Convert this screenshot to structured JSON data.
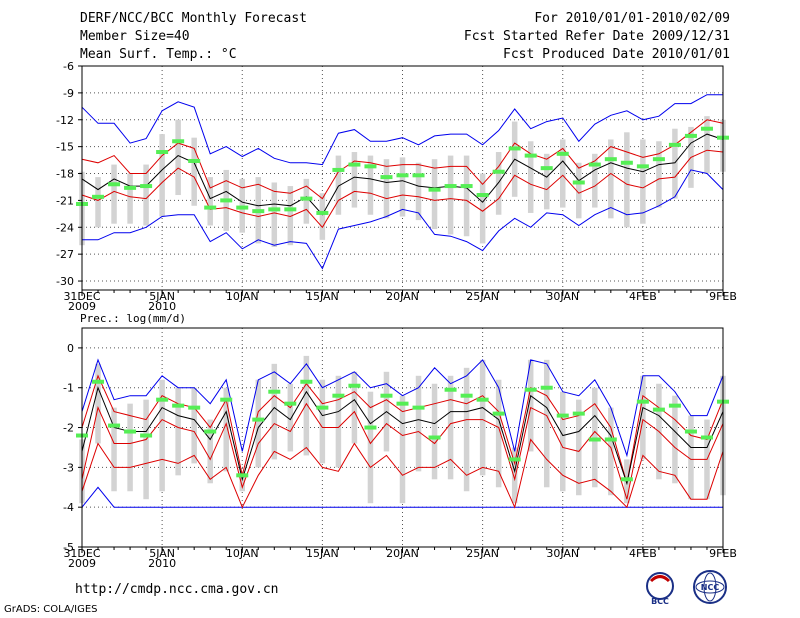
{
  "header": {
    "left": [
      "DERF/NCC/BCC Monthly Forecast",
      "Member Size=40",
      "Mean Surf. Temp.: °C"
    ],
    "right": [
      "For 2010/01/01-2010/02/09",
      "Fcst Started Refer Date 2009/12/31",
      "Fcst Produced Date 2010/01/01"
    ]
  },
  "colors": {
    "max_min": "#0000ee",
    "spread": "#dd0000",
    "mean": "#000000",
    "box": "#d3d3d3",
    "obs": "#55ee55"
  },
  "footer": {
    "url": "http://cmdp.ncc.cma.gov.cn",
    "grads": "GrADS: COLA/IGES",
    "logo_left": "BCC",
    "logo_right": "NCC"
  },
  "chart_data": [
    {
      "type": "line",
      "title": "Mean Surf. Temp.: °C",
      "ylim": [
        -31,
        -6
      ],
      "yticks": [
        "-6",
        "-9",
        "-12",
        "-15",
        "-18",
        "-21",
        "-24",
        "-27",
        "-30"
      ],
      "xlim": [
        0,
        40
      ],
      "xticks": [
        {
          "x": 0,
          "label": "31DEC",
          "sub": "2009"
        },
        {
          "x": 5,
          "label": "5JAN",
          "sub": "2010"
        },
        {
          "x": 10,
          "label": "10JAN",
          "sub": ""
        },
        {
          "x": 15,
          "label": "15JAN",
          "sub": ""
        },
        {
          "x": 20,
          "label": "20JAN",
          "sub": ""
        },
        {
          "x": 25,
          "label": "25JAN",
          "sub": ""
        },
        {
          "x": 30,
          "label": "30JAN",
          "sub": ""
        },
        {
          "x": 35,
          "label": "4FEB",
          "sub": ""
        },
        {
          "x": 40,
          "label": "9FEB",
          "sub": ""
        }
      ],
      "series": [
        {
          "name": "max",
          "values": [
            -10.6,
            -12.4,
            -12.4,
            -14.6,
            -14.1,
            -11.0,
            -10.0,
            -10.6,
            -15.8,
            -15.0,
            -16.1,
            -15.2,
            -16.3,
            -16.8,
            -16.8,
            -17.0,
            -13.5,
            -13.1,
            -14.4,
            -14.4,
            -14.0,
            -14.8,
            -13.8,
            -13.6,
            -13.6,
            -14.8,
            -13.2,
            -10.8,
            -13.0,
            -12.2,
            -11.8,
            -14.4,
            -12.5,
            -11.5,
            -11.0,
            -12.0,
            -11.6,
            -10.2,
            -10.2,
            -9.2,
            -9.2
          ]
        },
        {
          "name": "upper",
          "values": [
            -16.4,
            -16.8,
            -16.0,
            -18.0,
            -18.0,
            -16.0,
            -14.6,
            -15.2,
            -19.6,
            -18.8,
            -19.6,
            -19.2,
            -20.0,
            -20.2,
            -19.4,
            -20.8,
            -17.8,
            -16.6,
            -16.8,
            -17.2,
            -17.0,
            -17.0,
            -17.4,
            -17.2,
            -17.2,
            -19.2,
            -17.2,
            -14.6,
            -15.8,
            -16.4,
            -15.2,
            -17.4,
            -16.6,
            -15.0,
            -15.6,
            -16.2,
            -15.8,
            -14.8,
            -13.4,
            -12.0,
            -12.4
          ]
        },
        {
          "name": "mean",
          "values": [
            -18.6,
            -19.8,
            -18.6,
            -19.4,
            -19.4,
            -17.6,
            -16.0,
            -16.8,
            -20.8,
            -20.0,
            -21.2,
            -21.6,
            -21.4,
            -21.6,
            -20.6,
            -22.6,
            -19.4,
            -18.4,
            -18.6,
            -19.0,
            -18.8,
            -19.4,
            -19.6,
            -19.4,
            -19.6,
            -21.2,
            -19.0,
            -16.4,
            -17.4,
            -18.4,
            -16.6,
            -18.8,
            -17.6,
            -16.8,
            -17.4,
            -17.8,
            -17.0,
            -16.8,
            -14.6,
            -13.6,
            -14.2
          ]
        },
        {
          "name": "lower",
          "values": [
            -20.4,
            -21.0,
            -20.0,
            -20.6,
            -20.8,
            -19.0,
            -17.4,
            -18.4,
            -22.0,
            -21.8,
            -22.4,
            -22.8,
            -22.4,
            -22.8,
            -22.0,
            -24.0,
            -21.0,
            -20.0,
            -20.2,
            -20.8,
            -20.4,
            -20.6,
            -21.0,
            -20.8,
            -21.0,
            -22.2,
            -20.8,
            -18.2,
            -19.2,
            -19.8,
            -18.2,
            -20.2,
            -19.4,
            -18.0,
            -19.2,
            -19.6,
            -18.6,
            -18.4,
            -16.2,
            -15.4,
            -15.6
          ]
        },
        {
          "name": "min",
          "values": [
            -25.4,
            -25.4,
            -24.6,
            -24.6,
            -24.0,
            -22.8,
            -22.6,
            -22.6,
            -25.6,
            -24.6,
            -26.4,
            -25.4,
            -26.0,
            -25.6,
            -25.8,
            -28.6,
            -24.2,
            -23.8,
            -23.4,
            -22.8,
            -22.0,
            -22.4,
            -24.8,
            -25.0,
            -25.6,
            -26.6,
            -24.4,
            -23.0,
            -24.0,
            -22.4,
            -22.6,
            -23.8,
            -22.6,
            -21.8,
            -22.6,
            -22.4,
            -21.6,
            -20.6,
            -17.6,
            -18.0,
            -19.8
          ]
        },
        {
          "name": "box_top",
          "values": [
            -17.8,
            -18.4,
            -17.0,
            -18.0,
            -17.0,
            -13.6,
            -12.0,
            -14.0,
            -18.4,
            -17.6,
            -18.6,
            -18.4,
            -19.0,
            -19.4,
            -18.6,
            -20.2,
            -16.0,
            -15.6,
            -16.0,
            -16.4,
            -16.2,
            -16.8,
            -16.4,
            -16.0,
            -16.0,
            -18.0,
            -15.6,
            -12.2,
            -14.4,
            -15.8,
            -14.2,
            -16.8,
            -15.8,
            -14.2,
            -13.4,
            -14.2,
            -14.4,
            -13.0,
            -12.8,
            -11.6,
            -12.0
          ]
        },
        {
          "name": "box_bottom",
          "values": [
            -26.0,
            -24.0,
            -23.6,
            -23.6,
            -23.8,
            -22.8,
            -20.4,
            -21.6,
            -23.8,
            -24.4,
            -24.6,
            -25.8,
            -26.2,
            -26.0,
            -23.6,
            -25.4,
            -22.6,
            -21.8,
            -22.6,
            -23.0,
            -22.8,
            -23.2,
            -24.2,
            -24.8,
            -25.0,
            -25.8,
            -22.6,
            -20.6,
            -22.4,
            -22.0,
            -21.8,
            -23.0,
            -21.8,
            -23.0,
            -24.0,
            -23.6,
            -21.8,
            -20.8,
            -19.6,
            -18.0,
            -17.8
          ]
        },
        {
          "name": "obs",
          "values": [
            -21.4,
            -20.6,
            -19.2,
            -19.6,
            -19.4,
            -15.6,
            -14.4,
            -16.6,
            -21.8,
            -21.0,
            -21.8,
            -22.2,
            -22.0,
            -22.0,
            -20.8,
            -22.4,
            -17.6,
            -17.0,
            -17.2,
            -18.4,
            -18.2,
            -18.2,
            -19.8,
            -19.4,
            -19.4,
            -20.4,
            -17.8,
            -15.2,
            -16.0,
            -17.4,
            -15.8,
            -19.0,
            -17.0,
            -16.4,
            -16.8,
            -17.2,
            -16.4,
            -14.8,
            -13.8,
            -13.0,
            -14.0
          ]
        }
      ]
    },
    {
      "type": "line",
      "title": "Prec.: log(mm/d)",
      "ylim": [
        -5,
        0.5
      ],
      "yticks": [
        "0",
        "-1",
        "-2",
        "-3",
        "-4",
        "-5"
      ],
      "xlim": [
        0,
        40
      ],
      "xticks": [
        {
          "x": 0,
          "label": "31DEC",
          "sub": "2009"
        },
        {
          "x": 5,
          "label": "5JAN",
          "sub": "2010"
        },
        {
          "x": 10,
          "label": "10JAN",
          "sub": ""
        },
        {
          "x": 15,
          "label": "15JAN",
          "sub": ""
        },
        {
          "x": 20,
          "label": "20JAN",
          "sub": ""
        },
        {
          "x": 25,
          "label": "25JAN",
          "sub": ""
        },
        {
          "x": 30,
          "label": "30JAN",
          "sub": ""
        },
        {
          "x": 35,
          "label": "4FEB",
          "sub": ""
        },
        {
          "x": 40,
          "label": "9FEB",
          "sub": ""
        }
      ],
      "series": [
        {
          "name": "max",
          "values": [
            -1.6,
            -0.3,
            -1.3,
            -1.2,
            -1.2,
            -0.7,
            -1.0,
            -1.0,
            -1.4,
            -0.8,
            -2.6,
            -0.8,
            -0.6,
            -0.9,
            -0.4,
            -1.0,
            -0.8,
            -0.6,
            -1.0,
            -0.9,
            -1.2,
            -1.0,
            -0.5,
            -0.9,
            -0.7,
            -0.3,
            -1.0,
            -2.6,
            -0.3,
            -0.4,
            -1.1,
            -1.2,
            -0.8,
            -1.5,
            -2.7,
            -0.7,
            -0.7,
            -1.1,
            -1.7,
            -1.7,
            -0.7
          ]
        },
        {
          "name": "upper",
          "values": [
            -2.0,
            -0.7,
            -1.6,
            -1.7,
            -1.8,
            -1.2,
            -1.4,
            -1.5,
            -2.0,
            -1.3,
            -3.2,
            -1.6,
            -1.2,
            -1.5,
            -0.9,
            -1.4,
            -1.3,
            -1.1,
            -1.5,
            -1.3,
            -1.6,
            -1.5,
            -1.4,
            -1.3,
            -1.4,
            -1.2,
            -1.6,
            -2.9,
            -1.0,
            -1.2,
            -1.8,
            -1.7,
            -1.4,
            -2.0,
            -3.4,
            -1.2,
            -1.5,
            -1.8,
            -2.2,
            -2.3,
            -1.3
          ]
        },
        {
          "name": "mean",
          "values": [
            -2.6,
            -1.0,
            -2.0,
            -2.1,
            -2.1,
            -1.5,
            -1.7,
            -1.8,
            -2.3,
            -1.6,
            -3.3,
            -2.0,
            -1.5,
            -1.8,
            -1.1,
            -1.7,
            -1.6,
            -1.3,
            -1.9,
            -1.6,
            -1.9,
            -1.8,
            -1.9,
            -1.6,
            -1.6,
            -1.5,
            -1.8,
            -3.1,
            -1.2,
            -1.5,
            -2.2,
            -2.1,
            -1.7,
            -2.2,
            -3.4,
            -1.5,
            -1.7,
            -2.1,
            -2.5,
            -2.5,
            -1.6
          ]
        },
        {
          "name": "lower",
          "values": [
            -3.3,
            -1.5,
            -2.4,
            -2.4,
            -2.3,
            -1.8,
            -2.0,
            -2.1,
            -2.8,
            -1.9,
            -3.5,
            -2.4,
            -1.9,
            -2.1,
            -1.4,
            -2.0,
            -2.0,
            -1.6,
            -2.4,
            -1.9,
            -2.2,
            -2.1,
            -2.4,
            -1.9,
            -1.8,
            -1.8,
            -2.0,
            -3.3,
            -1.5,
            -1.7,
            -2.5,
            -2.6,
            -2.1,
            -2.5,
            -3.8,
            -1.8,
            -2.1,
            -2.5,
            -2.8,
            -2.8,
            -1.9
          ]
        },
        {
          "name": "lower2",
          "values": [
            -3.6,
            -2.4,
            -3.0,
            -3.0,
            -2.9,
            -2.8,
            -2.9,
            -2.7,
            -3.3,
            -3.0,
            -4.0,
            -3.2,
            -2.6,
            -2.8,
            -2.5,
            -3.0,
            -3.1,
            -2.4,
            -3.0,
            -2.7,
            -3.2,
            -3.0,
            -3.0,
            -2.8,
            -3.2,
            -3.0,
            -3.1,
            -4.0,
            -2.3,
            -2.8,
            -3.2,
            -3.4,
            -3.3,
            -3.6,
            -4.0,
            -2.7,
            -3.1,
            -3.2,
            -3.8,
            -3.8,
            -2.6
          ]
        },
        {
          "name": "min",
          "values": [
            -4.0,
            -3.5,
            -4.0,
            -4.0,
            -4.0,
            -4.0,
            -4.0,
            -4.0,
            -4.0,
            -4.0,
            -4.0,
            -4.0,
            -4.0,
            -4.0,
            -4.0,
            -4.0,
            -4.0,
            -4.0,
            -4.0,
            -4.0,
            -4.0,
            -4.0,
            -4.0,
            -4.0,
            -4.0,
            -4.0,
            -4.0,
            -4.0,
            -4.0,
            -4.0,
            -4.0,
            -4.0,
            -4.0,
            -4.0,
            -4.0,
            -4.0,
            -4.0,
            -4.0,
            -4.0,
            -4.0,
            -4.0
          ]
        },
        {
          "name": "box_top",
          "values": [
            -2.3,
            -0.4,
            -1.5,
            -1.4,
            -1.3,
            -0.8,
            -1.0,
            -1.0,
            -1.8,
            -1.0,
            -3.1,
            -0.8,
            -0.4,
            -0.9,
            -0.2,
            -0.8,
            -0.7,
            -0.6,
            -1.1,
            -0.6,
            -1.2,
            -0.7,
            -0.9,
            -0.7,
            -0.5,
            -0.3,
            -0.8,
            -2.5,
            -0.3,
            -0.3,
            -1.1,
            -1.3,
            -1.0,
            -1.5,
            -2.8,
            -0.7,
            -0.9,
            -1.2,
            -1.7,
            -1.8,
            -0.7
          ]
        },
        {
          "name": "box_bottom",
          "values": [
            -3.9,
            -2.4,
            -3.6,
            -3.6,
            -3.8,
            -3.6,
            -3.2,
            -2.9,
            -3.4,
            -3.1,
            -3.6,
            -3.0,
            -2.8,
            -2.6,
            -2.7,
            -2.9,
            -3.0,
            -2.4,
            -3.9,
            -2.6,
            -3.9,
            -3.1,
            -3.3,
            -3.3,
            -3.6,
            -3.2,
            -3.5,
            -3.9,
            -2.6,
            -3.5,
            -3.6,
            -3.7,
            -3.5,
            -3.7,
            -3.9,
            -2.8,
            -3.3,
            -3.4,
            -3.8,
            -3.8,
            -3.7
          ]
        },
        {
          "name": "obs",
          "values": [
            -2.2,
            -0.85,
            -1.95,
            -2.1,
            -2.2,
            -1.3,
            -1.45,
            -1.5,
            -2.1,
            -1.3,
            -3.2,
            -1.8,
            -1.1,
            -1.4,
            -0.85,
            -1.5,
            -1.2,
            -0.95,
            -2.0,
            -1.2,
            -1.4,
            -1.5,
            -2.25,
            -1.05,
            -1.2,
            -1.3,
            -1.65,
            -2.8,
            -1.05,
            -1.0,
            -1.7,
            -1.65,
            -2.3,
            -2.3,
            -3.3,
            -1.35,
            -1.55,
            -1.45,
            -2.1,
            -2.25,
            -1.35
          ]
        }
      ]
    }
  ]
}
